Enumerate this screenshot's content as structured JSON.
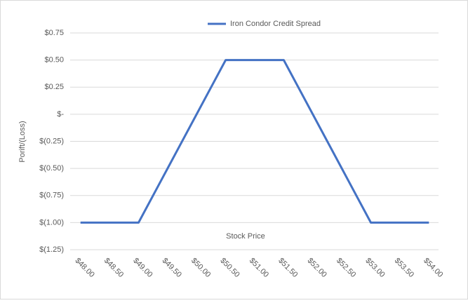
{
  "chart_data": {
    "type": "line",
    "legend_label": "Iron Condor Credit Spread",
    "x_label": "Stock Price",
    "y_label": "Porift/(Loss)",
    "categories": [
      "$48.00",
      "$48.50",
      "$49.00",
      "$49.50",
      "$50.00",
      "$50.50",
      "$51.00",
      "$51.50",
      "$52.00",
      "$52.50",
      "$53.00",
      "$53.50",
      "$54.00"
    ],
    "series": [
      {
        "name": "Iron Condor Credit Spread",
        "color": "#4472c4",
        "values": [
          -1,
          -1,
          -1,
          -0.5,
          0,
          0.5,
          0.5,
          0.5,
          0,
          -0.5,
          -1,
          -1,
          -1
        ]
      }
    ],
    "ylim": [
      -1.25,
      0.75
    ],
    "yticks": [
      {
        "value": -1.25,
        "label": "$(1.25)"
      },
      {
        "value": -1,
        "label": "$(1.00)"
      },
      {
        "value": -0.75,
        "label": "$(0.75)"
      },
      {
        "value": -0.5,
        "label": "$(0.50)"
      },
      {
        "value": -0.25,
        "label": "$(0.25)"
      },
      {
        "value": 0,
        "label": "$-"
      },
      {
        "value": 0.25,
        "label": "$0.25"
      },
      {
        "value": 0.5,
        "label": "$0.50"
      },
      {
        "value": 0.75,
        "label": "$0.75"
      }
    ],
    "grid": true
  }
}
